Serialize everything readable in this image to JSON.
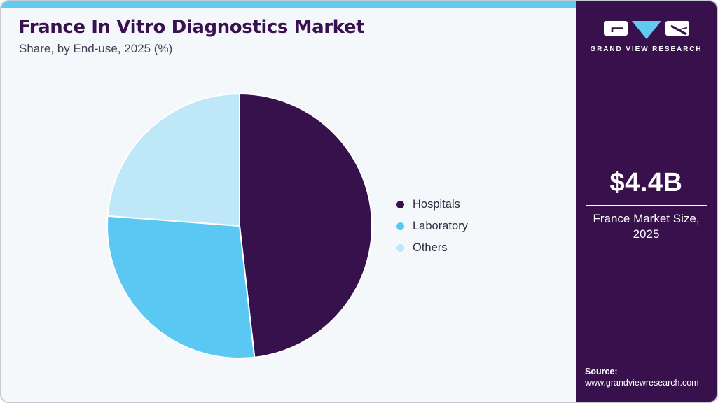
{
  "header": {
    "title": "France In Vitro Diagnostics Market",
    "subtitle": "Share, by End-use, 2025 (%)"
  },
  "chart_data": {
    "type": "pie",
    "title": "France In Vitro Diagnostics Market Share, by End-use, 2025 (%)",
    "categories": [
      "Hospitals",
      "Laboratory",
      "Others"
    ],
    "values": [
      48.2,
      28.0,
      23.8
    ],
    "unit": "%",
    "colors": [
      "#37114B",
      "#5BC8F3",
      "#BEE7F8"
    ],
    "start_angle_deg": 0,
    "direction": "clockwise",
    "legend_position": "right",
    "slice_border_color": "#FFFFFF"
  },
  "sidebar": {
    "brand": "GRAND VIEW RESEARCH",
    "market_size_value": "$4.4B",
    "market_size_label": "France Market Size, 2025",
    "source_label": "Source:",
    "source_url": "www.grandviewresearch.com"
  },
  "ui_colors": {
    "top_strip": "#62C9F0",
    "card_background": "#F4F8FB",
    "card_border": "#C6CBD2",
    "title_text": "#3A1150",
    "sidebar_background": "#38114C",
    "logo_triangle": "#62C9F0"
  }
}
